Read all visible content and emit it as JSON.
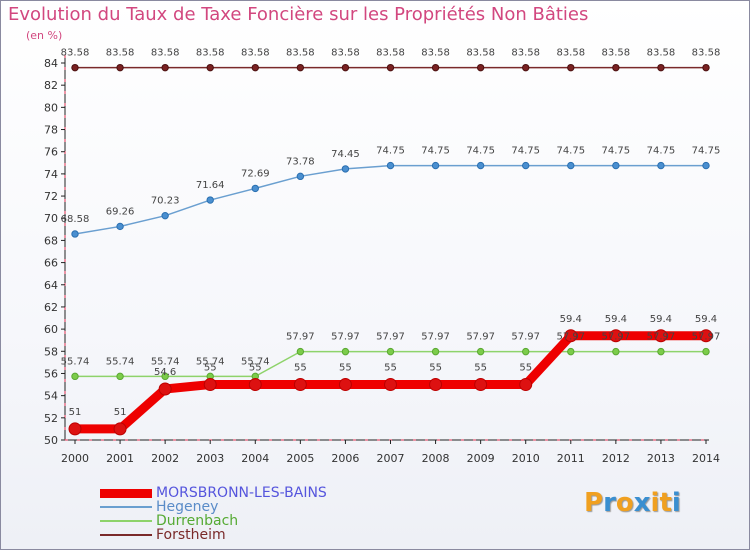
{
  "chart_data": {
    "type": "line",
    "title": "Evolution du Taux de Taxe Foncière sur les Propriétés Non Bâties",
    "ylabel": "(en %)",
    "xlabel": "",
    "ylim": [
      50,
      84
    ],
    "yticks": [
      50,
      52,
      54,
      56,
      58,
      60,
      62,
      64,
      66,
      68,
      70,
      72,
      74,
      76,
      78,
      80,
      82,
      84
    ],
    "categories": [
      "2000",
      "2001",
      "2002",
      "2003",
      "2004",
      "2005",
      "2006",
      "2007",
      "2008",
      "2009",
      "2010",
      "2011",
      "2012",
      "2013",
      "2014"
    ],
    "series": [
      {
        "name": "MORSBRONN-LES-BAINS",
        "color": "#ee0000",
        "values": [
          51,
          51,
          54.6,
          55,
          55,
          55,
          55,
          55,
          55,
          55,
          55,
          59.4,
          59.4,
          59.4,
          59.4
        ],
        "labels": [
          "51",
          "51",
          "54.6",
          "55",
          "55",
          "55",
          "55",
          "55",
          "55",
          "55",
          "55",
          "59.4",
          "59.4",
          "59.4",
          "59.4"
        ]
      },
      {
        "name": "Hegeney",
        "color": "#6a9fd0",
        "values": [
          68.58,
          69.26,
          70.23,
          71.64,
          72.69,
          73.78,
          74.45,
          74.75,
          74.75,
          74.75,
          74.75,
          74.75,
          74.75,
          74.75,
          74.75
        ],
        "labels": [
          "68.58",
          "69.26",
          "70.23",
          "71.64",
          "72.69",
          "73.78",
          "74.45",
          "74.75",
          "74.75",
          "74.75",
          "74.75",
          "74.75",
          "74.75",
          "74.75",
          "74.75"
        ]
      },
      {
        "name": "Durrenbach",
        "color": "#8ed36a",
        "values": [
          55.74,
          55.74,
          55.74,
          55.74,
          55.74,
          57.97,
          57.97,
          57.97,
          57.97,
          57.97,
          57.97,
          57.97,
          57.97,
          57.97,
          57.97
        ],
        "labels": [
          "55.74",
          "55.74",
          "55.74",
          "55.74",
          "55.74",
          "57.97",
          "57.97",
          "57.97",
          "57.97",
          "57.97",
          "57.97",
          "57.97",
          "57.97",
          "57.97",
          "57.97"
        ]
      },
      {
        "name": "Forstheim",
        "color": "#7a2a2a",
        "values": [
          83.58,
          83.58,
          83.58,
          83.58,
          83.58,
          83.58,
          83.58,
          83.58,
          83.58,
          83.58,
          83.58,
          83.58,
          83.58,
          83.58,
          83.58
        ],
        "labels": [
          "83.58",
          "83.58",
          "83.58",
          "83.58",
          "83.58",
          "83.58",
          "83.58",
          "83.58",
          "83.58",
          "83.58",
          "83.58",
          "83.58",
          "83.58",
          "83.58",
          "83.58"
        ]
      }
    ],
    "legend_position": "bottom-left",
    "grid": false
  },
  "branding": {
    "letters": [
      "P",
      "r",
      "o",
      "x",
      "i",
      "t",
      "i"
    ],
    "colors": [
      "#f0a020",
      "#3a8fd0",
      "#f0a020",
      "#3a8fd0",
      "#f0a020",
      "#f0a020",
      "#3a8fd0"
    ]
  },
  "legend_text_colors": [
    "#5555dd",
    "#5a8cc8",
    "#55aa33",
    "#7a2a2a"
  ]
}
